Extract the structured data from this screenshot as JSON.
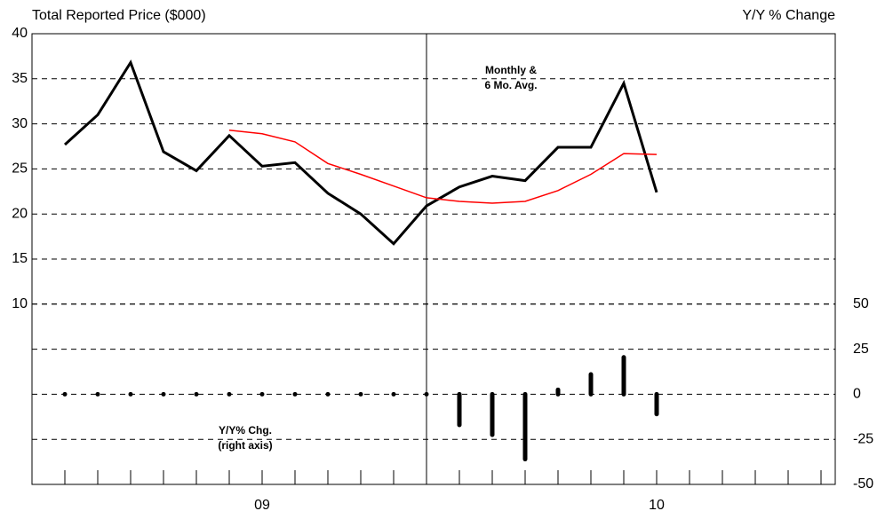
{
  "chart_data": {
    "type": "line",
    "y_label": "Total Reported Price ($000)",
    "y2_label": "Y/Y % Change",
    "annotations": [
      [
        "Monthly &",
        "6 Mo. Avg."
      ],
      [
        "Y/Y% Chg.",
        "(right axis)"
      ]
    ],
    "categories": [
      null,
      null,
      null,
      null,
      null,
      null,
      "09",
      null,
      null,
      null,
      null,
      null,
      null,
      null,
      null,
      null,
      null,
      null,
      "10",
      null,
      null,
      null,
      null,
      null
    ],
    "series": [
      {
        "color": "#000000",
        "values": [
          27.7,
          31.0,
          36.8,
          26.9,
          24.8,
          28.7,
          25.3,
          25.7,
          22.3,
          20.0,
          16.7,
          20.9,
          23.0,
          24.2,
          23.7,
          27.4,
          27.4,
          34.5,
          22.4,
          null,
          null,
          null,
          null,
          null
        ]
      },
      {
        "color": "#ff0000",
        "values": [
          null,
          null,
          null,
          null,
          null,
          29.3,
          28.9,
          28.0,
          25.6,
          24.4,
          23.1,
          21.8,
          21.4,
          21.2,
          21.4,
          22.6,
          24.4,
          26.7,
          26.6,
          null,
          null,
          null,
          null,
          null
        ]
      },
      {
        "type": "bar",
        "axis": "y2",
        "color": "#000000",
        "values": [
          0,
          0,
          0,
          0,
          0,
          0,
          0,
          0,
          0,
          0,
          0,
          0,
          -17,
          -22.5,
          -36,
          2.5,
          11,
          20.5,
          -11,
          null,
          null,
          null,
          null,
          null
        ]
      }
    ],
    "ylim": [
      -10,
      40
    ],
    "yticks": [
      10,
      15,
      20,
      25,
      30,
      35,
      40
    ],
    "y2lim": [
      -50,
      200
    ],
    "y2ticks": [
      -50,
      -25,
      0,
      25,
      50
    ],
    "grid": true
  }
}
